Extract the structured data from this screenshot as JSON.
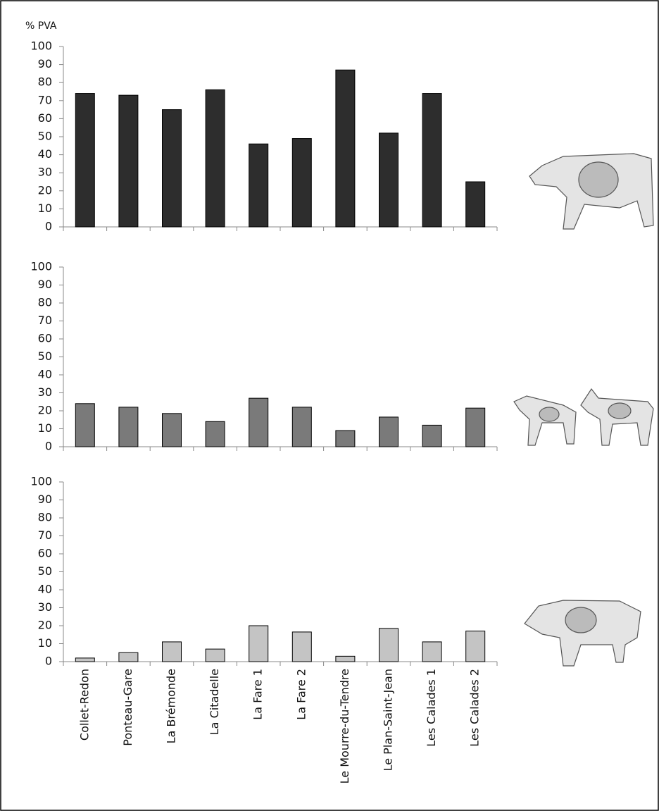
{
  "chart_data": [
    {
      "type": "bar",
      "ylabel": "% PVA",
      "values": [
        74,
        73,
        65,
        76,
        46,
        49,
        87,
        52,
        74,
        25
      ],
      "color": "#2d2d2d",
      "ylim": [
        0,
        100
      ],
      "yticks": [
        0,
        10,
        20,
        30,
        40,
        50,
        60,
        70,
        80,
        90,
        100
      ]
    },
    {
      "type": "bar",
      "values": [
        24,
        22,
        18.5,
        14,
        27,
        22,
        9,
        16.5,
        12,
        21.5
      ],
      "color": "#7a7a7a",
      "ylim": [
        0,
        100
      ],
      "yticks": [
        0,
        10,
        20,
        30,
        40,
        50,
        60,
        70,
        80,
        90,
        100
      ]
    },
    {
      "type": "bar",
      "categories": [
        "Collet-Redon",
        "Ponteau-Gare",
        "La Brémonde",
        "La Citadelle",
        "La Fare 1",
        "La Fare 2",
        "Le Mourre-du-Tendre",
        "Le Plan-Saint-Jean",
        "Les Calades 1",
        "Les Calades 2"
      ],
      "values": [
        2,
        5,
        11,
        7,
        20,
        16.5,
        3,
        18.5,
        11,
        17
      ],
      "color": "#c4c4c4",
      "ylim": [
        0,
        100
      ],
      "yticks": [
        0,
        10,
        20,
        30,
        40,
        50,
        60,
        70,
        80,
        90,
        100
      ]
    }
  ]
}
